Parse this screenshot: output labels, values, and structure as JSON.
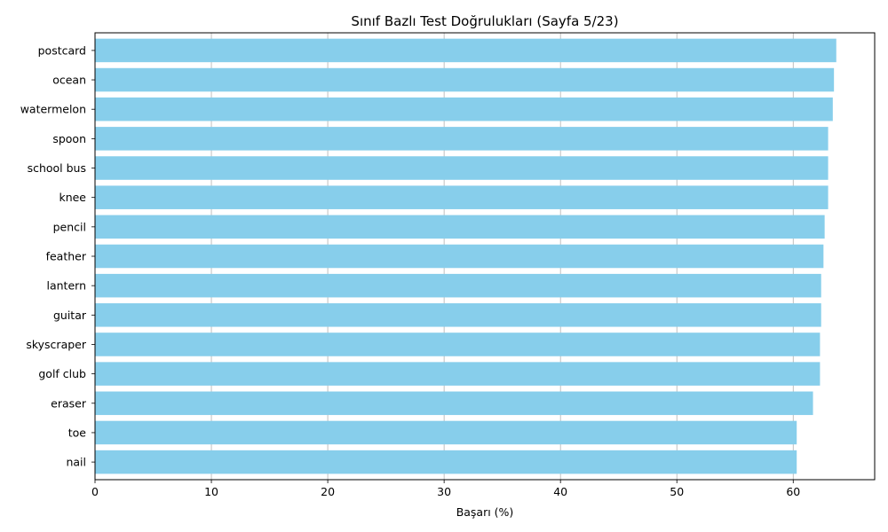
{
  "chart_data": {
    "type": "bar",
    "orientation": "horizontal",
    "title": "Sınıf Bazlı Test Doğrulukları (Sayfa 5/23)",
    "xlabel": "Başarı (%)",
    "ylabel": "",
    "categories": [
      "postcard",
      "ocean",
      "watermelon",
      "spoon",
      "school bus",
      "knee",
      "pencil",
      "feather",
      "lantern",
      "guitar",
      "skyscraper",
      "golf club",
      "eraser",
      "toe",
      "nail"
    ],
    "values": [
      63.7,
      63.5,
      63.4,
      63.0,
      63.0,
      63.0,
      62.7,
      62.6,
      62.4,
      62.4,
      62.3,
      62.3,
      61.7,
      60.3,
      60.3
    ],
    "xlim": [
      0,
      67
    ],
    "xticks": [
      0,
      10,
      20,
      30,
      40,
      50,
      60
    ],
    "grid": "x",
    "bar_color": "#87CEEB",
    "grid_color": "#b0b0b0"
  }
}
